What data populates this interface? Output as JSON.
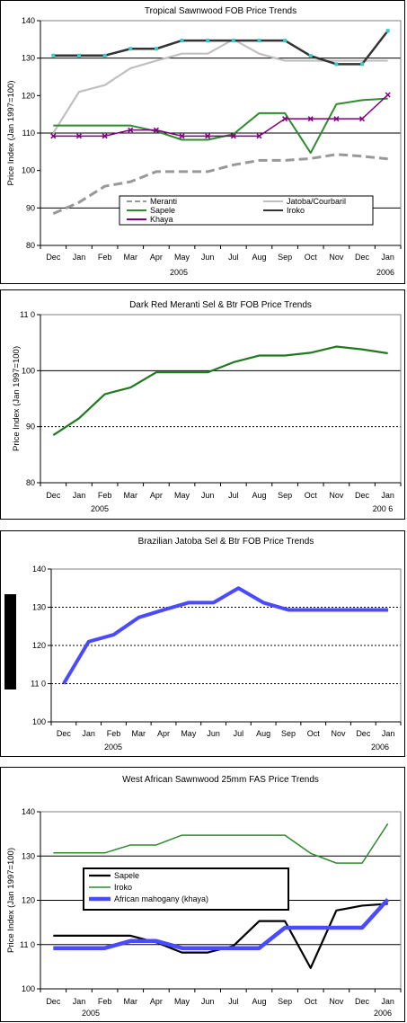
{
  "chart_data": [
    {
      "type": "line",
      "title": "Tropical Sawnwood FOB Price Trends",
      "ylabel": "Price Index (Jan 1997=100)",
      "ylim": [
        80,
        140
      ],
      "yticks": [
        "80",
        "90",
        "100",
        "110",
        "120",
        "130",
        "140"
      ],
      "categories": [
        "Dec",
        "Jan",
        "Feb",
        "Mar",
        "Apr",
        "May",
        "Jun",
        "Jul",
        "Aug",
        "Sep",
        "Oct",
        "Nov",
        "Dec",
        "Jan"
      ],
      "years": [
        "2005",
        "2006"
      ],
      "grid": "solid lines at 90, 110, 130",
      "legend_placement": "bottom-center",
      "series": [
        {
          "name": "Meranti",
          "color": "#999999",
          "values": [
            88.5,
            91.5,
            95.8,
            97,
            99.7,
            99.7,
            99.7,
            101.5,
            102.7,
            102.7,
            103.2,
            104.3,
            103.8,
            103.1
          ]
        },
        {
          "name": "Jatoba/Courbaril",
          "color": "#c0c0c0",
          "values": [
            110,
            121,
            122.8,
            127.3,
            129.3,
            131.2,
            131.2,
            135,
            131.2,
            129.3,
            129.3,
            129.3,
            129.3,
            129.3
          ]
        },
        {
          "name": "Sapele",
          "color": "#2e8b2e",
          "values": [
            112,
            112,
            112,
            112,
            110.5,
            108.2,
            108.2,
            109.7,
            115.3,
            115.3,
            104.7,
            117.7,
            118.8,
            119.2
          ]
        },
        {
          "name": "Iroko",
          "color": "#333333",
          "marker": "#33cccc",
          "values": [
            130.7,
            130.7,
            130.7,
            132.5,
            132.5,
            134.7,
            134.7,
            134.7,
            134.7,
            134.7,
            130.6,
            128.4,
            128.4,
            137.3
          ]
        },
        {
          "name": "Khaya",
          "color": "#800080",
          "values": [
            109.2,
            109.2,
            109.2,
            110.8,
            110.8,
            109.2,
            109.2,
            109.2,
            109.2,
            113.8,
            113.8,
            113.8,
            113.8,
            120.2
          ]
        }
      ]
    },
    {
      "type": "line",
      "title": "Dark Red Meranti Sel & Btr FOB Price Trends",
      "ylabel": "Price Index (Jan 1997=100)",
      "ylim": [
        80,
        110
      ],
      "yticks": [
        "80",
        "90",
        "100",
        "11 0"
      ],
      "categories": [
        "Dec",
        "Jan",
        "Feb",
        "Mar",
        "Apr",
        "May",
        "Jun",
        "Jul",
        "Aug",
        "Sep",
        "Oct",
        "Nov",
        "Dec",
        "Jan"
      ],
      "years": [
        "2005",
        "200 6"
      ],
      "grid": "solid at 100, dotted at 90",
      "series": [
        {
          "name": "",
          "color": "#1f7a1f",
          "values": [
            88.5,
            91.5,
            95.8,
            97,
            99.7,
            99.7,
            99.7,
            101.5,
            102.7,
            102.7,
            103.2,
            104.3,
            103.8,
            103.1
          ]
        }
      ]
    },
    {
      "type": "line",
      "title": "Brazilian Jatoba Sel & Btr FOB Price Trends",
      "ylabel": "",
      "ylim": [
        100,
        140
      ],
      "yticks": [
        "100",
        "11 0",
        "120",
        "130",
        "140"
      ],
      "categories": [
        "Dec",
        "Jan",
        "Feb",
        "Mar",
        "Apr",
        "May",
        "Jun",
        "Jul",
        "Aug",
        "Sep",
        "Oct",
        "Nov",
        "Dec",
        "Jan"
      ],
      "years": [
        "2005",
        "2006"
      ],
      "grid": "dotted at 110, 120, 130",
      "series": [
        {
          "name": "",
          "color": "#4a4aff",
          "values": [
            110,
            121,
            122.8,
            127.3,
            129.3,
            131.2,
            131.2,
            135,
            131.2,
            129.3,
            129.3,
            129.3,
            129.3,
            129.3
          ]
        }
      ]
    },
    {
      "type": "line",
      "title": "West African Sawnwood 25mm FAS Price Trends",
      "ylabel": "Price Index (Jan 1997=100)",
      "ylim": [
        100,
        140
      ],
      "yticks": [
        "100",
        "11 0",
        "120",
        "130",
        "140"
      ],
      "categories": [
        "Dec",
        "Jan",
        "Feb",
        "Mar",
        "Apr",
        "May",
        "Jun",
        "Jul",
        "Aug",
        "Sep",
        "Oct",
        "Nov",
        "Dec",
        "Jan"
      ],
      "years": [
        "2005",
        "2006"
      ],
      "grid": "solid at 110, 120, 130",
      "legend_placement": "center-left",
      "series": [
        {
          "name": "Sapele",
          "color": "#000000",
          "values": [
            112,
            112,
            112,
            112,
            110.5,
            108.2,
            108.2,
            109.7,
            115.3,
            115.3,
            104.7,
            117.7,
            118.8,
            119.2
          ]
        },
        {
          "name": "Iroko",
          "color": "#2e8b2e",
          "values": [
            130.7,
            130.7,
            130.7,
            132.5,
            132.5,
            134.7,
            134.7,
            134.7,
            134.7,
            134.7,
            130.6,
            128.4,
            128.4,
            137.3
          ]
        },
        {
          "name": "African mahogany (khaya)",
          "color": "#4a4aff",
          "values": [
            109.2,
            109.2,
            109.2,
            110.8,
            110.8,
            109.2,
            109.2,
            109.2,
            109.2,
            113.8,
            113.8,
            113.8,
            113.8,
            120.2
          ]
        }
      ]
    }
  ]
}
